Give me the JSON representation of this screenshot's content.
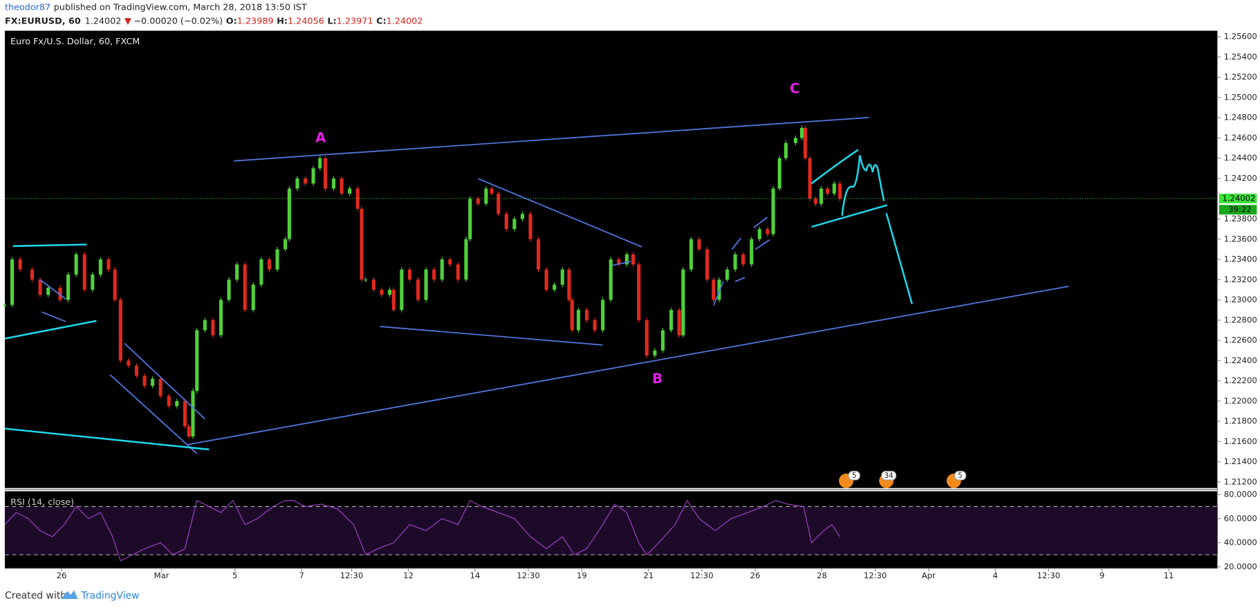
{
  "header": {
    "author": "theodor87",
    "published": "published on TradingView.com, March 28, 2018 13:50 IST",
    "symbol": "FX:EURUSD, 60",
    "last": "1.24002",
    "arrow": "▼",
    "change": "−0.00020 (−0.02%)",
    "ohlc": [
      {
        "label": "O:",
        "value": "1.23989"
      },
      {
        "label": "H:",
        "value": "1.24056"
      },
      {
        "label": "L:",
        "value": "1.23971"
      },
      {
        "label": "C:",
        "value": "1.24002"
      }
    ]
  },
  "chart_data": [
    {
      "type": "candlestick",
      "title": "Euro Fx/U.S. Dollar, 60, FXCM",
      "up_color": "#4fd13a",
      "down_color": "#e0291e",
      "x": [
        0,
        0.22,
        0.46,
        0.82,
        1.06,
        1.3,
        1.66,
        1.9,
        2.14,
        2.39,
        2.63,
        2.87,
        3.11,
        3.3,
        3.47,
        3.71,
        3.95,
        4.19,
        4.43,
        4.67,
        4.92,
        5.16,
        5.4,
        5.52,
        5.64,
        5.76,
        6,
        6.24,
        6.48,
        6.72,
        6.96,
        7.2,
        7.45,
        7.69,
        7.93,
        8.17,
        8.41,
        8.53,
        8.77,
        9.01,
        9.25,
        9.45,
        9.61,
        9.86,
        10.1,
        10.34,
        10.58,
        10.7,
        10.82,
        11.06,
        11.3,
        11.54,
        11.66,
        11.9,
        12.14,
        12.39,
        12.63,
        12.87,
        13.11,
        13.35,
        13.59,
        13.83,
        13.95,
        14.19,
        14.43,
        14.6,
        14.8,
        15.04,
        15.28,
        15.52,
        15.76,
        16,
        16.24,
        16.48,
        16.72,
        16.92,
        17.01,
        17.2,
        17.45,
        17.69,
        17.93,
        18.17,
        18.41,
        18.65,
        18.84,
        19.01,
        19.25,
        19.49,
        19.73,
        19.98,
        20.22,
        20.34,
        20.58,
        20.82,
        21.06,
        21.25,
        21.42,
        21.66,
        21.9,
        22.14,
        22.39,
        22.63,
        22.87,
        23.04,
        23.23,
        23.42,
        23.71,
        23.9,
        24,
        24.14,
        24.31,
        24.48,
        24.67,
        24.87,
        25.04
      ],
      "values": [
        1.2295,
        1.234,
        1.233,
        1.232,
        1.2305,
        1.2312,
        1.23,
        1.2325,
        1.2345,
        1.231,
        1.2325,
        1.234,
        1.233,
        1.23,
        1.224,
        1.2235,
        1.2225,
        1.2215,
        1.2222,
        1.2205,
        1.2195,
        1.22,
        1.2175,
        1.2165,
        1.221,
        1.227,
        1.228,
        1.2265,
        1.23,
        1.232,
        1.2335,
        1.229,
        1.2315,
        1.234,
        1.233,
        1.235,
        1.236,
        1.241,
        1.242,
        1.2415,
        1.243,
        1.244,
        1.241,
        1.242,
        1.2405,
        1.241,
        1.239,
        1.232,
        1.232,
        1.231,
        1.2305,
        1.231,
        1.229,
        1.233,
        1.232,
        1.23,
        1.233,
        1.232,
        1.234,
        1.2335,
        1.232,
        1.236,
        1.24,
        1.2395,
        1.241,
        1.2405,
        1.2385,
        1.237,
        1.238,
        1.2385,
        1.236,
        1.233,
        1.231,
        1.2315,
        1.233,
        1.23,
        1.227,
        1.229,
        1.228,
        1.227,
        1.23,
        1.234,
        1.2335,
        1.2345,
        1.2335,
        1.228,
        1.2245,
        1.225,
        1.227,
        1.229,
        1.2265,
        1.233,
        1.236,
        1.235,
        1.232,
        1.23,
        1.232,
        1.233,
        1.2345,
        1.2335,
        1.236,
        1.237,
        1.2365,
        1.241,
        1.244,
        1.2455,
        1.246,
        1.247,
        1.244,
        1.24,
        1.2395,
        1.241,
        1.2405,
        1.2415,
        1.24
      ],
      "xlim": [
        0,
        36.36
      ],
      "ylim": [
        1.2114,
        1.2566
      ],
      "xticks": [
        {
          "value": 1.7,
          "label": "26"
        },
        {
          "value": 4.7,
          "label": "Mar"
        },
        {
          "value": 6.9,
          "label": "5"
        },
        {
          "value": 8.9,
          "label": "7"
        },
        {
          "value": 10.4,
          "label": "12:30"
        },
        {
          "value": 12.1,
          "label": "12"
        },
        {
          "value": 14.1,
          "label": "14"
        },
        {
          "value": 15.7,
          "label": "12:30"
        },
        {
          "value": 17.3,
          "label": "19"
        },
        {
          "value": 19.3,
          "label": "21"
        },
        {
          "value": 20.9,
          "label": "12:30"
        },
        {
          "value": 22.5,
          "label": "26"
        },
        {
          "value": 24.5,
          "label": "28"
        },
        {
          "value": 26.1,
          "label": "12:30"
        },
        {
          "value": 27.7,
          "label": "Apr"
        },
        {
          "value": 29.7,
          "label": "4"
        },
        {
          "value": 31.3,
          "label": "12:30"
        },
        {
          "value": 32.9,
          "label": "9"
        },
        {
          "value": 34.9,
          "label": "11"
        }
      ],
      "yticks": [
        {
          "value": 1.256,
          "label": "1.25600"
        },
        {
          "value": 1.254,
          "label": "1.25400"
        },
        {
          "value": 1.252,
          "label": "1.25200"
        },
        {
          "value": 1.25,
          "label": "1.25000"
        },
        {
          "value": 1.248,
          "label": "1.24800"
        },
        {
          "value": 1.246,
          "label": "1.24600"
        },
        {
          "value": 1.244,
          "label": "1.24400"
        },
        {
          "value": 1.242,
          "label": "1.24200"
        },
        {
          "value": 1.238,
          "label": "1.23800"
        },
        {
          "value": 1.236,
          "label": "1.23600"
        },
        {
          "value": 1.234,
          "label": "1.23400"
        },
        {
          "value": 1.232,
          "label": "1.23200"
        },
        {
          "value": 1.23,
          "label": "1.23000"
        },
        {
          "value": 1.228,
          "label": "1.22800"
        },
        {
          "value": 1.226,
          "label": "1.22600"
        },
        {
          "value": 1.224,
          "label": "1.22400"
        },
        {
          "value": 1.222,
          "label": "1.22200"
        },
        {
          "value": 1.22,
          "label": "1.22000"
        },
        {
          "value": 1.218,
          "label": "1.21800"
        },
        {
          "value": 1.216,
          "label": "1.21600"
        },
        {
          "value": 1.214,
          "label": "1.21400"
        },
        {
          "value": 1.212,
          "label": "1.21200"
        }
      ],
      "last_price": {
        "value": 1.24002,
        "label": "1.24002"
      },
      "countdown": "39:22",
      "wave_labels": [
        "A",
        "B",
        "C"
      ],
      "events": [
        "5",
        "34",
        "5"
      ]
    },
    {
      "type": "line",
      "title": "RSI (14, close)",
      "color": "#a240c8",
      "x": [
        0,
        0.34,
        0.7,
        1.06,
        1.42,
        1.78,
        2.14,
        2.51,
        2.87,
        3.23,
        3.47,
        3.83,
        4.19,
        4.67,
        5.04,
        5.4,
        5.76,
        6.12,
        6.48,
        6.84,
        7.2,
        7.57,
        8.05,
        8.41,
        8.65,
        9.01,
        9.49,
        9.98,
        10.46,
        10.82,
        11.18,
        11.66,
        12.14,
        12.63,
        13.11,
        13.59,
        13.95,
        14.31,
        14.8,
        15.28,
        15.76,
        16.24,
        16.72,
        17.08,
        17.45,
        17.93,
        18.29,
        18.65,
        19.01,
        19.25,
        19.61,
        20.1,
        20.46,
        20.82,
        21.3,
        21.78,
        22.27,
        22.75,
        23.11,
        23.47,
        23.95,
        24.19,
        24.55,
        24.8,
        25.04
      ],
      "values": [
        55,
        65,
        60,
        50,
        45,
        55,
        70,
        60,
        65,
        45,
        25,
        30,
        35,
        40,
        30,
        35,
        75,
        70,
        65,
        75,
        55,
        60,
        70,
        75,
        75,
        70,
        72,
        68,
        55,
        30,
        35,
        40,
        55,
        50,
        60,
        55,
        75,
        70,
        65,
        60,
        45,
        35,
        45,
        30,
        35,
        55,
        72,
        65,
        40,
        30,
        40,
        55,
        75,
        60,
        50,
        60,
        65,
        70,
        75,
        72,
        70,
        40,
        50,
        55,
        45
      ],
      "xlim": [
        0,
        36.36
      ],
      "ylim": [
        18.7,
        82.7
      ],
      "yticks": [
        {
          "value": 80,
          "label": "80.0000"
        },
        {
          "value": 60,
          "label": "60.0000"
        },
        {
          "value": 40,
          "label": "40.0000"
        },
        {
          "value": 20,
          "label": "20.0000"
        }
      ],
      "bands": [
        70,
        30
      ]
    }
  ],
  "footer": {
    "created": "Created with",
    "brand": "TradingView"
  }
}
